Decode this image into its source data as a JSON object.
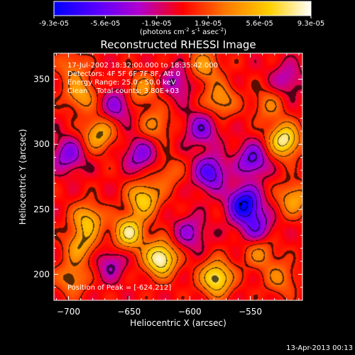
{
  "colorbar": {
    "ticks": [
      "-9.3e-05",
      "-5.6e-05",
      "-1.9e-05",
      "1.9e-05",
      "5.6e-05",
      "9.3e-05"
    ],
    "units_prefix": "(photons cm",
    "units_exp1": "-2",
    "units_mid": " s",
    "units_exp2": "-1",
    "units_mid2": " asec",
    "units_exp3": "-2",
    "units_suffix": ")",
    "colors": [
      "#0000ff",
      "#6a00ff",
      "#c600c6",
      "#ff0000",
      "#ff7a00",
      "#ffd000",
      "#ffffff"
    ]
  },
  "chart_data": {
    "type": "heatmap",
    "title": "Reconstructed RHESSI Image",
    "xlabel": "Heliocentric X (arcsec)",
    "ylabel": "Heliocentric Y (arcsec)",
    "xlim": [
      -712,
      -507
    ],
    "ylim": [
      180,
      370
    ],
    "xticks": [
      -700,
      -650,
      -600,
      -550
    ],
    "yticks": [
      200,
      250,
      300,
      350
    ],
    "color_range": [
      -9.3e-05,
      9.3e-05
    ],
    "annotations": [
      "17-Jul-2002 18:32:00.000 to 18:35:42.000",
      "Detectors: 4F 5F 6F 7F 8F, Att 0",
      "Energy Range: 25.0 - 50.0 keV",
      "Clean    Total counts: 3.80E+03"
    ],
    "peak_label": "Position of Peak = [-624,212]",
    "peak_position": [
      -624,
      212
    ],
    "minimum_marker": [
      -558,
      254
    ],
    "sources": [
      {
        "x": -624,
        "y": 212,
        "value": 9.3e-05
      },
      {
        "x": -650,
        "y": 232,
        "value": 7.6e-05
      },
      {
        "x": -638,
        "y": 258,
        "value": 6.6e-05
      },
      {
        "x": -684,
        "y": 242,
        "value": 5.6e-05
      },
      {
        "x": -690,
        "y": 222,
        "value": 4.6e-05
      },
      {
        "x": -697,
        "y": 197,
        "value": 3.8e-05
      },
      {
        "x": -690,
        "y": 338,
        "value": 4.5e-05
      },
      {
        "x": -675,
        "y": 308,
        "value": 5.4e-05
      },
      {
        "x": -628,
        "y": 315,
        "value": 3.4e-05
      },
      {
        "x": -618,
        "y": 278,
        "value": 2.6e-05
      },
      {
        "x": -588,
        "y": 360,
        "value": 4.1e-05
      },
      {
        "x": -575,
        "y": 334,
        "value": 4.4e-05
      },
      {
        "x": -578,
        "y": 197,
        "value": 8.1e-05
      },
      {
        "x": -542,
        "y": 217,
        "value": 3.6e-05
      },
      {
        "x": -522,
        "y": 303,
        "value": 8.3e-05
      },
      {
        "x": -514,
        "y": 258,
        "value": 4.8e-05
      },
      {
        "x": -535,
        "y": 330,
        "value": 3e-05
      },
      {
        "x": -525,
        "y": 197,
        "value": 3.3e-05
      },
      {
        "x": -697,
        "y": 360,
        "value": 2.9e-05
      },
      {
        "x": -640,
        "y": 342,
        "value": 3.9e-05
      },
      {
        "x": -555,
        "y": 254,
        "value": -9.3e-05
      },
      {
        "x": -583,
        "y": 278,
        "value": -6.5e-05
      },
      {
        "x": -548,
        "y": 288,
        "value": -5.6e-05
      },
      {
        "x": -590,
        "y": 312,
        "value": -4.6e-05
      },
      {
        "x": -545,
        "y": 236,
        "value": -4.8e-05
      },
      {
        "x": -700,
        "y": 292,
        "value": -4.6e-05
      },
      {
        "x": -640,
        "y": 292,
        "value": -4.4e-05
      },
      {
        "x": -660,
        "y": 330,
        "value": -4e-05
      },
      {
        "x": -600,
        "y": 232,
        "value": -3.6e-05
      },
      {
        "x": -665,
        "y": 208,
        "value": -3.2e-05
      },
      {
        "x": -610,
        "y": 348,
        "value": -3.4e-05
      },
      {
        "x": -520,
        "y": 350,
        "value": -3e-05
      }
    ]
  },
  "footer": {
    "date": "13-Apr-2013 00:13"
  }
}
